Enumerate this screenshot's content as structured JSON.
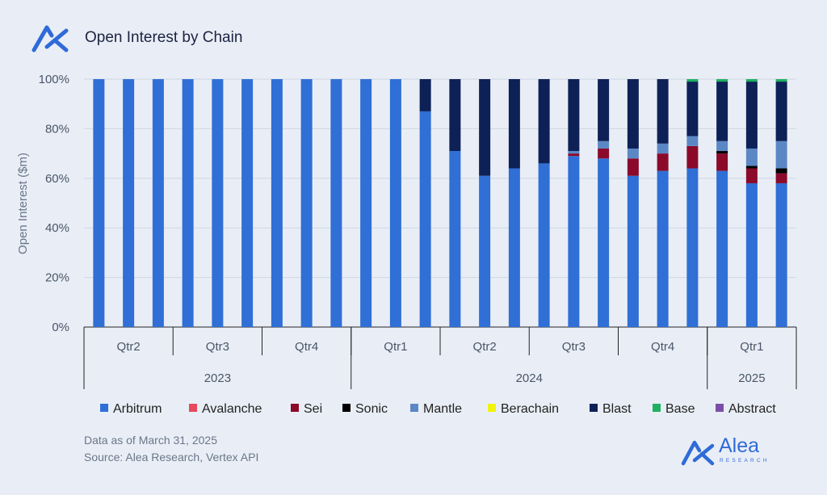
{
  "title": "Open Interest by Chain",
  "footnote": {
    "line1": "Data as of March 31, 2025",
    "line2": "Source: Alea Research, Vertex API"
  },
  "brand": {
    "name": "Alea",
    "sub": "RESEARCH"
  },
  "chart_data": {
    "type": "bar",
    "stacked": true,
    "ylabel": "Open Interest ($m)",
    "ylim": [
      0,
      100
    ],
    "yticks": [
      "0%",
      "20%",
      "40%",
      "60%",
      "80%",
      "100%"
    ],
    "grid": true,
    "legend_position": "bottom",
    "quarter_groups": [
      {
        "label": "Qtr2",
        "bars": 3
      },
      {
        "label": "Qtr3",
        "bars": 3
      },
      {
        "label": "Qtr4",
        "bars": 3
      },
      {
        "label": "Qtr1",
        "bars": 3
      },
      {
        "label": "Qtr2",
        "bars": 3
      },
      {
        "label": "Qtr3",
        "bars": 3
      },
      {
        "label": "Qtr4",
        "bars": 3
      },
      {
        "label": "Qtr1",
        "bars": 3
      }
    ],
    "year_groups": [
      {
        "label": "2023",
        "bars": 9
      },
      {
        "label": "2024",
        "bars": 12
      },
      {
        "label": "2025",
        "bars": 3
      }
    ],
    "series": [
      {
        "name": "Arbitrum",
        "color": "#2f6fd6",
        "values": [
          100,
          100,
          100,
          100,
          100,
          100,
          100,
          100,
          100,
          100,
          100,
          87,
          71,
          61,
          64,
          66,
          69,
          68,
          61,
          63,
          64,
          63,
          58,
          58
        ]
      },
      {
        "name": "Avalanche",
        "color": "#e8485c",
        "values": [
          0,
          0,
          0,
          0,
          0,
          0,
          0,
          0,
          0,
          0,
          0,
          0,
          0,
          0,
          0,
          0,
          0,
          0,
          0,
          0,
          0,
          0,
          0,
          0
        ]
      },
      {
        "name": "Sei",
        "color": "#8b0a2a",
        "values": [
          0,
          0,
          0,
          0,
          0,
          0,
          0,
          0,
          0,
          0,
          0,
          0,
          0,
          0,
          0,
          0,
          1,
          4,
          7,
          7,
          9,
          7,
          6,
          4
        ]
      },
      {
        "name": "Sonic",
        "color": "#000000",
        "values": [
          0,
          0,
          0,
          0,
          0,
          0,
          0,
          0,
          0,
          0,
          0,
          0,
          0,
          0,
          0,
          0,
          0,
          0,
          0,
          0,
          0,
          1,
          1,
          2
        ]
      },
      {
        "name": "Mantle",
        "color": "#5b87c5",
        "values": [
          0,
          0,
          0,
          0,
          0,
          0,
          0,
          0,
          0,
          0,
          0,
          0,
          0,
          0,
          0,
          0,
          1,
          3,
          4,
          4,
          4,
          4,
          7,
          11
        ]
      },
      {
        "name": "Berachain",
        "color": "#f2f20f",
        "values": [
          0,
          0,
          0,
          0,
          0,
          0,
          0,
          0,
          0,
          0,
          0,
          0,
          0,
          0,
          0,
          0,
          0,
          0,
          0,
          0,
          0,
          0,
          0,
          0
        ]
      },
      {
        "name": "Blast",
        "color": "#0d2157",
        "values": [
          0,
          0,
          0,
          0,
          0,
          0,
          0,
          0,
          0,
          0,
          0,
          13,
          29,
          39,
          36,
          34,
          29,
          25,
          28,
          26,
          22,
          24,
          27,
          24
        ]
      },
      {
        "name": "Base",
        "color": "#1fb060",
        "values": [
          0,
          0,
          0,
          0,
          0,
          0,
          0,
          0,
          0,
          0,
          0,
          0,
          0,
          0,
          0,
          0,
          0,
          0,
          0,
          0,
          1,
          1,
          1,
          1
        ]
      },
      {
        "name": "Abstract",
        "color": "#7b4fa6",
        "values": [
          0,
          0,
          0,
          0,
          0,
          0,
          0,
          0,
          0,
          0,
          0,
          0,
          0,
          0,
          0,
          0,
          0,
          0,
          0,
          0,
          0,
          0,
          0,
          0
        ]
      }
    ]
  }
}
